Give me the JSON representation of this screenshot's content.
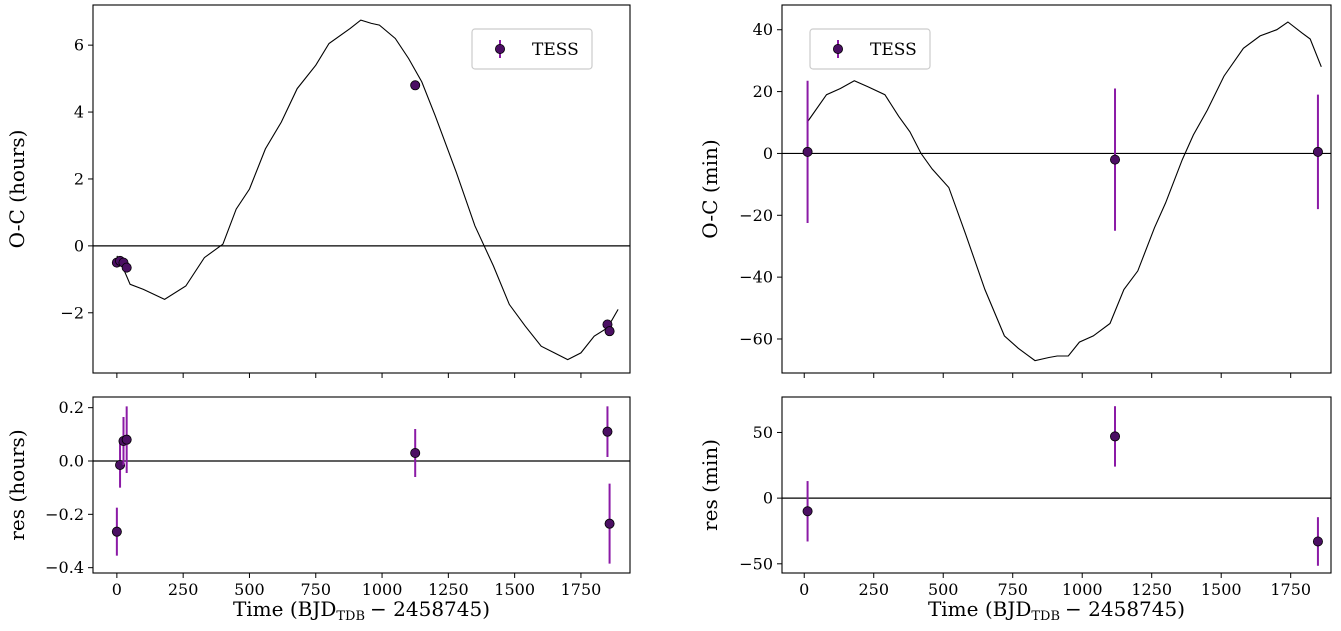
{
  "colors": {
    "marker_face": "#4b0f63",
    "errorbar": "#8b1aa6",
    "model_line": "#000000",
    "zero_line": "#000000",
    "legend_border": "#cccccc"
  },
  "chart_data": [
    {
      "id": "left-top",
      "type": "scatter",
      "ylabel": "O-C (hours)",
      "xlim": [
        -90,
        1935
      ],
      "ylim": [
        -3.8,
        7.2
      ],
      "xticks": [
        0,
        250,
        500,
        750,
        1000,
        1250,
        1500,
        1750
      ],
      "xtick_labels": [
        "",
        "",
        "",
        "",
        "",
        "",
        "",
        ""
      ],
      "yticks": [
        -2,
        0,
        2,
        4,
        6
      ],
      "ytick_labels": [
        "−2",
        "0",
        "2",
        "4",
        "6"
      ],
      "zero_line": 0,
      "legend": {
        "label": "TESS",
        "position": "upper right"
      },
      "model": {
        "x": [
          0,
          20,
          50,
          100,
          180,
          260,
          330,
          400,
          450,
          500,
          560,
          620,
          680,
          750,
          800,
          880,
          920,
          960,
          990,
          1050,
          1100,
          1150,
          1200,
          1280,
          1350,
          1420,
          1480,
          1540,
          1600,
          1650,
          1700,
          1750,
          1800,
          1850,
          1890
        ],
        "y": [
          -0.3,
          -0.6,
          -1.15,
          -1.3,
          -1.6,
          -1.2,
          -0.35,
          0.05,
          1.1,
          1.7,
          2.9,
          3.7,
          4.7,
          5.4,
          6.05,
          6.5,
          6.75,
          6.65,
          6.6,
          6.2,
          5.6,
          4.9,
          3.9,
          2.2,
          0.6,
          -0.6,
          -1.75,
          -2.4,
          -3.0,
          -3.2,
          -3.4,
          -3.2,
          -2.7,
          -2.45,
          -1.9
        ]
      },
      "series": [
        {
          "name": "TESS",
          "x": [
            0,
            12,
            25,
            37,
            1125,
            1850,
            1858
          ],
          "y": [
            -0.5,
            -0.45,
            -0.5,
            -0.65,
            4.8,
            -2.35,
            -2.55
          ],
          "yerr": [
            0.1,
            0.1,
            0.1,
            0.1,
            0.1,
            0.1,
            0.1
          ]
        }
      ]
    },
    {
      "id": "left-bottom",
      "type": "scatter",
      "ylabel": "res (hours)",
      "xlabel": "Time (BJD",
      "xlabel_sub": "TDB",
      "xlabel_tail": "− 2458745)",
      "xlim": [
        -90,
        1935
      ],
      "ylim": [
        -0.42,
        0.24
      ],
      "xticks": [
        0,
        250,
        500,
        750,
        1000,
        1250,
        1500,
        1750
      ],
      "xtick_labels": [
        "0",
        "250",
        "500",
        "750",
        "1000",
        "1250",
        "1500",
        "1750"
      ],
      "yticks": [
        -0.4,
        -0.2,
        0.0,
        0.2
      ],
      "ytick_labels": [
        "−0.4",
        "−0.2",
        "0.0",
        "0.2"
      ],
      "zero_line": 0,
      "series": [
        {
          "name": "TESS",
          "x": [
            0,
            12,
            25,
            37,
            1125,
            1850,
            1858
          ],
          "y": [
            -0.265,
            -0.015,
            0.075,
            0.08,
            0.03,
            0.11,
            -0.235
          ],
          "yerr": [
            0.09,
            0.085,
            0.09,
            0.125,
            0.09,
            0.095,
            0.15
          ]
        }
      ]
    },
    {
      "id": "right-top",
      "type": "scatter",
      "ylabel": "O-C (min)",
      "xlim": [
        -80,
        1895
      ],
      "ylim": [
        -71,
        48
      ],
      "xticks": [
        0,
        250,
        500,
        750,
        1000,
        1250,
        1500,
        1750
      ],
      "xtick_labels": [
        "",
        "",
        "",
        "",
        "",
        "",
        "",
        ""
      ],
      "yticks": [
        -60,
        -40,
        -20,
        0,
        20,
        40
      ],
      "ytick_labels": [
        "−60",
        "−40",
        "−20",
        "0",
        "20",
        "40"
      ],
      "zero_line": 0,
      "legend": {
        "label": "TESS",
        "position": "upper left"
      },
      "model": {
        "x": [
          10,
          80,
          130,
          180,
          230,
          290,
          340,
          380,
          420,
          460,
          520,
          580,
          650,
          720,
          770,
          800,
          830,
          880,
          910,
          950,
          990,
          1040,
          1100,
          1150,
          1200,
          1260,
          1300,
          1360,
          1400,
          1450,
          1510,
          1580,
          1640,
          1700,
          1740,
          1790,
          1820,
          1860
        ],
        "y": [
          10,
          19,
          21,
          23.5,
          21.5,
          19,
          12,
          7,
          0,
          -5,
          -11,
          -26,
          -44,
          -59,
          -63,
          -65,
          -67,
          -66,
          -65.5,
          -65.5,
          -61,
          -59,
          -55,
          -44,
          -38,
          -24,
          -16,
          -2,
          6,
          14,
          25,
          34,
          38,
          40,
          42.5,
          39,
          37,
          28
        ]
      },
      "series": [
        {
          "name": "TESS",
          "x": [
            12,
            1118,
            1848
          ],
          "y": [
            0.5,
            -2,
            0.5
          ],
          "yerr": [
            23,
            23,
            18.5
          ]
        }
      ]
    },
    {
      "id": "right-bottom",
      "type": "scatter",
      "ylabel": "res (min)",
      "xlabel": "Time (BJD",
      "xlabel_sub": "TDB",
      "xlabel_tail": "− 2458745)",
      "xlim": [
        -80,
        1895
      ],
      "ylim": [
        -57,
        77
      ],
      "xticks": [
        0,
        250,
        500,
        750,
        1000,
        1250,
        1500,
        1750
      ],
      "xtick_labels": [
        "0",
        "250",
        "500",
        "750",
        "1000",
        "1250",
        "1500",
        "1750"
      ],
      "yticks": [
        -50,
        0,
        50
      ],
      "ytick_labels": [
        "−50",
        "0",
        "50"
      ],
      "zero_line": 0,
      "series": [
        {
          "name": "TESS",
          "x": [
            12,
            1118,
            1848
          ],
          "y": [
            -10,
            47,
            -33
          ],
          "yerr": [
            23,
            23,
            18.5
          ]
        }
      ]
    }
  ]
}
